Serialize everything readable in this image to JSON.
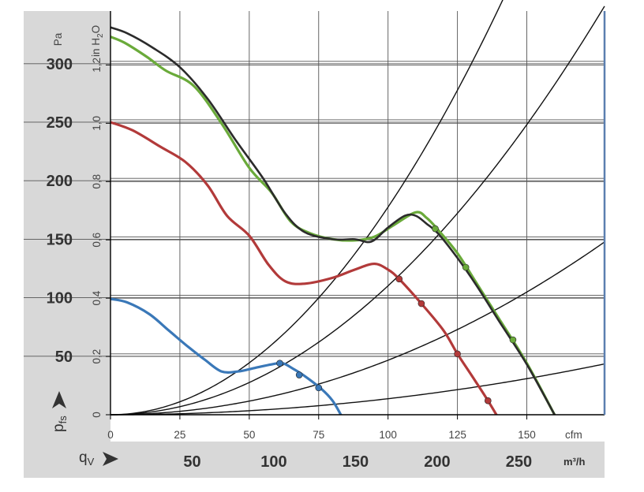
{
  "chart_data": {
    "type": "line",
    "x_unit_primary": "cfm",
    "x_unit_secondary": "m³/h",
    "y_unit_primary": "Pa",
    "y_unit_secondary": "in H2O",
    "y_unit_secondary_main": "in H",
    "y_unit_secondary_sub": "2",
    "y_unit_secondary_tail": "O",
    "x_axis_symbol": "q",
    "x_axis_symbol_sub": "V",
    "y_axis_symbol": "p",
    "y_axis_symbol_sub": "fs",
    "xlim_cfm": [
      0,
      178
    ],
    "ylim_pa": [
      0,
      345
    ],
    "cfm_ticks": [
      "0",
      "25",
      "50",
      "75",
      "100",
      "125",
      "150"
    ],
    "cfm_tick_values": [
      0,
      25,
      50,
      75,
      100,
      125,
      150
    ],
    "m3h_ticks": [
      "50",
      "100",
      "150",
      "200",
      "250"
    ],
    "m3h_tick_values": [
      50,
      100,
      150,
      200,
      250
    ],
    "pa_ticks": [
      "50",
      "100",
      "150",
      "200",
      "250",
      "300"
    ],
    "pa_tick_values": [
      50,
      100,
      150,
      200,
      250,
      300
    ],
    "inh2o_ticks": [
      "0",
      "0,2",
      "0,4",
      "0,6",
      "0,8",
      "1,0",
      "1,2"
    ],
    "inh2o_tick_values": [
      0,
      0.2,
      0.4,
      0.6,
      0.8,
      1.0,
      1.2
    ],
    "grid": true,
    "series": [
      {
        "color": "#2b2b2b",
        "x": [
          0,
          6,
          15,
          25,
          35,
          45,
          55,
          63,
          70,
          80,
          88,
          94,
          100,
          106,
          110,
          114,
          118,
          125,
          132,
          140,
          150,
          160
        ],
        "y": [
          331,
          326,
          314,
          297,
          270,
          235,
          202,
          172,
          156,
          150,
          150,
          148,
          160,
          170,
          170,
          163,
          155,
          134,
          110,
          80,
          43,
          0
        ],
        "markers_x": [],
        "markers_y": []
      },
      {
        "color": "#6aaa3a",
        "x": [
          0,
          5,
          13,
          20,
          30,
          40,
          50,
          58,
          65,
          72,
          80,
          88,
          95,
          102,
          110,
          114,
          118,
          125,
          132,
          140,
          150,
          160
        ],
        "y": [
          323,
          318,
          306,
          294,
          281,
          249,
          211,
          190,
          165,
          155,
          150,
          149,
          152,
          162,
          173,
          168,
          158,
          138,
          112,
          82,
          44,
          0
        ],
        "markers_x": [
          117,
          128,
          145
        ],
        "markers_y": [
          159,
          126,
          64
        ],
        "marker_color": "#6aaa3a"
      },
      {
        "color": "#b23a3a",
        "x": [
          0,
          8,
          18,
          27,
          35,
          42,
          50,
          57,
          63,
          70,
          80,
          88,
          95,
          100,
          104,
          112,
          120,
          125,
          130,
          136,
          142
        ],
        "y": [
          250,
          243,
          229,
          216,
          196,
          170,
          153,
          128,
          114,
          112,
          117,
          124,
          129,
          124,
          116,
          95,
          72,
          52,
          34,
          12,
          -12
        ],
        "markers_x": [
          104,
          112,
          125,
          136
        ],
        "markers_y": [
          116,
          95,
          52,
          12
        ],
        "marker_color": "#b23a3a"
      },
      {
        "color": "#3a78b8",
        "x": [
          0,
          6,
          14,
          21,
          28,
          34,
          40,
          46,
          52,
          58,
          62,
          66,
          70,
          76,
          80,
          83
        ],
        "y": [
          99,
          96,
          86,
          72,
          58,
          47,
          37,
          37,
          40,
          43,
          44,
          39,
          33,
          22,
          12,
          0
        ],
        "markers_x": [
          61,
          68,
          75
        ],
        "markers_y": [
          44,
          34,
          23
        ],
        "marker_color": "#3a78b8"
      }
    ],
    "system_curves": [
      {
        "k": 0.01775
      },
      {
        "k": 0.01102
      },
      {
        "k": 0.00466
      },
      {
        "k": 0.00137
      }
    ]
  }
}
